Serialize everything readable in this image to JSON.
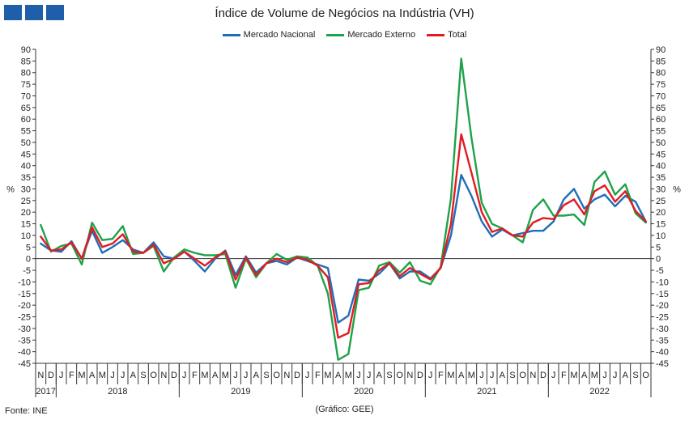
{
  "header": {
    "title": "Índice de Volume de Negócios na Indústria (VH)",
    "logo_color": "#1f5ea8"
  },
  "footer": {
    "source": "Fonte: INE",
    "credit": "(Gráfico: GEE)"
  },
  "chart_data": {
    "type": "line",
    "title": "Índice de Volume de Negócios na Indústria (VH)",
    "ylabel_left": "%",
    "ylabel_right": "%",
    "ylim": [
      -45,
      90
    ],
    "ytick_step": 5,
    "grid": false,
    "legend_position": "top",
    "month_labels": [
      "N",
      "D",
      "J",
      "F",
      "M",
      "A",
      "M",
      "J",
      "J",
      "A",
      "S",
      "O",
      "N",
      "D",
      "J",
      "F",
      "M",
      "A",
      "M",
      "J",
      "J",
      "A",
      "S",
      "O",
      "N",
      "D",
      "J",
      "F",
      "M",
      "A",
      "M",
      "J",
      "J",
      "A",
      "S",
      "O",
      "N",
      "D",
      "J",
      "F",
      "M",
      "A",
      "M",
      "J",
      "J",
      "A",
      "S",
      "O",
      "N",
      "D",
      "J",
      "F",
      "M",
      "A",
      "M",
      "J",
      "J",
      "A",
      "S",
      "O"
    ],
    "years": [
      {
        "label": "2017",
        "start": 0,
        "end": 2
      },
      {
        "label": "2018",
        "start": 2,
        "end": 14
      },
      {
        "label": "2019",
        "start": 14,
        "end": 26
      },
      {
        "label": "2020",
        "start": 26,
        "end": 38
      },
      {
        "label": "2021",
        "start": 38,
        "end": 50
      },
      {
        "label": "2022",
        "start": 50,
        "end": 60
      }
    ],
    "series": [
      {
        "name": "Mercado Nacional",
        "color": "#1f6fb8",
        "values": [
          6.5,
          3.5,
          3,
          7.5,
          0,
          12,
          2.5,
          5,
          8,
          4,
          2.5,
          7,
          1,
          0,
          3,
          -1,
          -5.5,
          0,
          3.5,
          -7,
          1,
          -6,
          -2,
          -1,
          -2.5,
          0.5,
          -1,
          -2.5,
          -4,
          -27.5,
          -24.5,
          -9,
          -9.5,
          -6.5,
          -2,
          -8.5,
          -5.5,
          -5.5,
          -8.5,
          -4,
          10,
          36,
          27,
          16,
          9.5,
          12.5,
          10,
          11,
          12,
          12,
          16,
          25.5,
          30,
          21.5,
          25.5,
          27.5,
          22.5,
          27,
          24.5,
          16
        ]
      },
      {
        "name": "Mercado Externo",
        "color": "#1ea24a",
        "values": [
          14.5,
          3,
          5.5,
          6.5,
          -2.5,
          15.5,
          8,
          8.5,
          14,
          2,
          2.5,
          5.5,
          -5.5,
          0.5,
          4,
          2.5,
          1.5,
          1.5,
          2,
          -12.5,
          0,
          -8,
          -2,
          2,
          -0.5,
          1,
          0.5,
          -3,
          -15,
          -43.5,
          -41,
          -13.5,
          -12.5,
          -3,
          -1.5,
          -6,
          -1.5,
          -9.5,
          -11,
          -3.5,
          26,
          86,
          52,
          24,
          15,
          13,
          10,
          7,
          21,
          25.5,
          18.5,
          18.5,
          19,
          14.5,
          33,
          37.5,
          27.5,
          32,
          19.5,
          15.5
        ]
      },
      {
        "name": "Total",
        "color": "#e21b22",
        "values": [
          9.5,
          3.5,
          4,
          7,
          0,
          13.5,
          5,
          6.5,
          10.5,
          3,
          2.5,
          6,
          -2,
          0,
          3,
          0,
          -3,
          0.5,
          3,
          -9,
          0.5,
          -7,
          -2,
          0,
          -1.5,
          0.5,
          -0.5,
          -3,
          -8,
          -34,
          -32,
          -11,
          -10.5,
          -5,
          -2,
          -7.5,
          -4,
          -6.5,
          -9,
          -4,
          15,
          53.5,
          37,
          20,
          11.5,
          13,
          10,
          9.5,
          15.5,
          17.5,
          17,
          23,
          25.5,
          19,
          29,
          31.5,
          24.5,
          29,
          20.5,
          16
        ]
      }
    ]
  }
}
